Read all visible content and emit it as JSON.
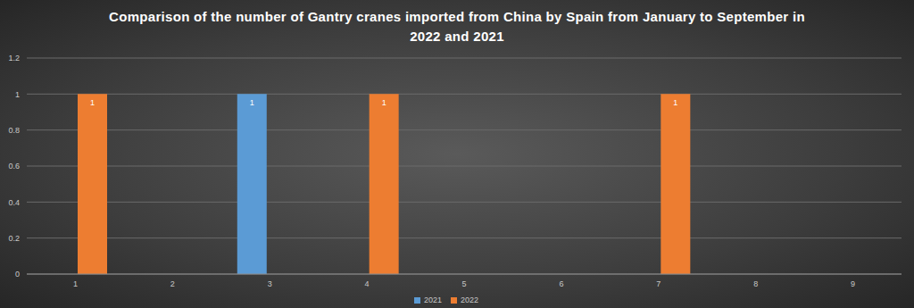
{
  "chart_data": {
    "type": "bar",
    "title": "Comparison of the number of Gantry cranes imported from China by Spain from January to September in 2022 and 2021",
    "categories": [
      "1",
      "2",
      "3",
      "4",
      "5",
      "6",
      "7",
      "8",
      "9"
    ],
    "series": [
      {
        "name": "2021",
        "color": "#5b9bd5",
        "values": [
          null,
          null,
          1,
          null,
          null,
          null,
          null,
          null,
          null
        ]
      },
      {
        "name": "2022",
        "color": "#ed7d31",
        "values": [
          1,
          null,
          null,
          1,
          null,
          null,
          1,
          null,
          null
        ]
      }
    ],
    "ylim": [
      0,
      1.2
    ],
    "yticks": [
      0,
      0.2,
      0.4,
      0.6,
      0.8,
      1,
      1.2
    ],
    "grid": true,
    "legend": "bottom",
    "data_labels": true
  }
}
